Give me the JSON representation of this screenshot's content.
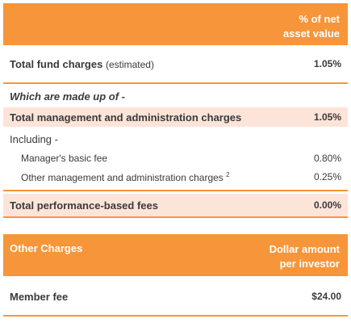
{
  "header": {
    "col_line1": "% of net",
    "col_line2": "asset value"
  },
  "total_fund": {
    "label": "Total fund charges",
    "note": "(estimated)",
    "value": "1.05%"
  },
  "made_up_of": "Which are made up of -",
  "total_mgmt": {
    "label": "Total management and administration charges",
    "value": "1.05%"
  },
  "including": "Including -",
  "basic_fee": {
    "label": "Manager's basic fee",
    "value": "0.80%"
  },
  "other_mgmt": {
    "label": "Other management and administration charges",
    "footnote": "2",
    "value": "0.25%"
  },
  "performance": {
    "label": "Total performance-based fees",
    "value": "0.00%"
  },
  "other_charges": {
    "title": "Other Charges",
    "col_line1": "Dollar amount",
    "col_line2": "per investor"
  },
  "member_fee": {
    "label": "Member fee",
    "value": "$24.00"
  },
  "colors": {
    "accent": "#f7953a",
    "highlight": "#fde4d8"
  }
}
